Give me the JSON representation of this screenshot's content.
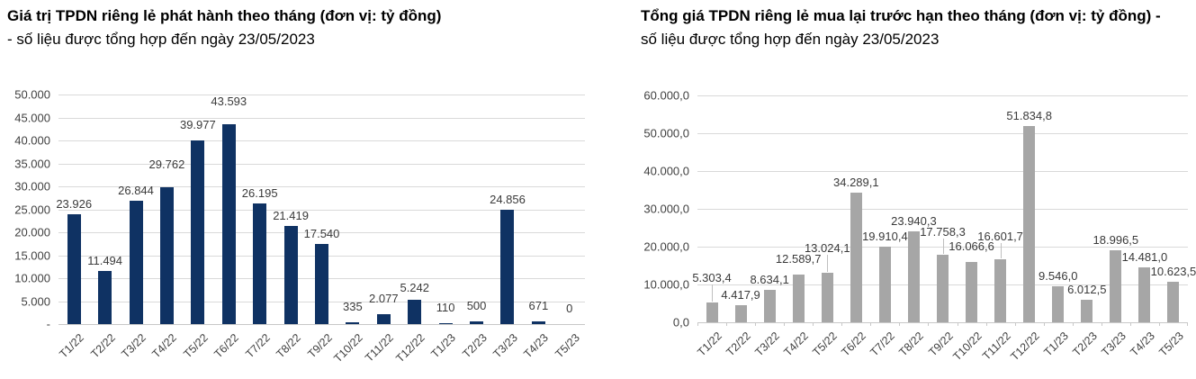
{
  "page": {
    "background": "#ffffff"
  },
  "colors": {
    "grid": "#d9d9d9",
    "axis": "#c8c8c8",
    "tick_label": "#404040",
    "data_label": "#3a3a3a",
    "leader": "#bfbfbf",
    "title": "#000000"
  },
  "chart_data": [
    {
      "type": "bar",
      "title_bold": "Giá trị TPDN riêng lẻ phát hành theo tháng (đơn vị: tỷ đồng)",
      "title_rest": "- số liệu được tổng hợp đến ngày 23/05/2023",
      "bar_color": "#0f3263",
      "grid": true,
      "legend": "none",
      "xlabel": "",
      "ylabel": "",
      "ylim": [
        0,
        50000
      ],
      "ytick_step": 5000,
      "yticks": [
        {
          "value": 50000,
          "label": "50.000"
        },
        {
          "value": 45000,
          "label": "45.000"
        },
        {
          "value": 40000,
          "label": "40.000"
        },
        {
          "value": 35000,
          "label": "35.000"
        },
        {
          "value": 30000,
          "label": "30.000"
        },
        {
          "value": 25000,
          "label": "25.000"
        },
        {
          "value": 20000,
          "label": "20.000"
        },
        {
          "value": 15000,
          "label": "15.000"
        },
        {
          "value": 10000,
          "label": "10.000"
        },
        {
          "value": 5000,
          "label": "5.000"
        },
        {
          "value": 0,
          "label": "-"
        }
      ],
      "categories": [
        "T1/22",
        "T2/22",
        "T3/22",
        "T4/22",
        "T5/22",
        "T6/22",
        "T7/22",
        "T8/22",
        "T9/22",
        "T10/22",
        "T11/22",
        "T12/22",
        "T1/23",
        "T2/23",
        "T3/23",
        "T4/23",
        "T5/23"
      ],
      "values": [
        23926,
        11494,
        26844,
        29762,
        39977,
        43593,
        26195,
        21419,
        17540,
        335,
        2077,
        5242,
        110,
        500,
        24856,
        671,
        0
      ],
      "labels": [
        "23.926",
        "11.494",
        "26.844",
        "29.762",
        "39.977",
        "43.593",
        "26.195",
        "21.419",
        "17.540",
        "335",
        "2.077",
        "5.242",
        "110",
        "500",
        "24.856",
        "671",
        "0"
      ],
      "label_raise": [
        0,
        0,
        0,
        14,
        6,
        14,
        0,
        0,
        0,
        6,
        6,
        2,
        6,
        6,
        0,
        6,
        6
      ],
      "leader_indices": [],
      "x_tick_marks": false
    },
    {
      "type": "bar",
      "title_bold": "Tổng giá TPDN riêng lẻ mua lại trước hạn theo tháng (đơn vị: tỷ đồng) -",
      "title_rest": " số liệu được tổng hợp đến ngày 23/05/2023",
      "bar_color": "#a6a6a6",
      "grid": true,
      "legend": "none",
      "xlabel": "",
      "ylabel": "",
      "ylim": [
        0,
        60000
      ],
      "ytick_step": 10000,
      "yticks": [
        {
          "value": 60000,
          "label": "60.000,0"
        },
        {
          "value": 50000,
          "label": "50.000,0"
        },
        {
          "value": 40000,
          "label": "40.000,0"
        },
        {
          "value": 30000,
          "label": "30.000,0"
        },
        {
          "value": 20000,
          "label": "20.000,0"
        },
        {
          "value": 10000,
          "label": "10.000,0"
        },
        {
          "value": 0,
          "label": "0,0"
        }
      ],
      "categories": [
        "T1/22",
        "T2/22",
        "T3/22",
        "T4/22",
        "T5/22",
        "T6/22",
        "T7/22",
        "T8/22",
        "T9/22",
        "T10/22",
        "T11/22",
        "T12/22",
        "T1/23",
        "T2/23",
        "T3/23",
        "T4/23",
        "T5/23"
      ],
      "values": [
        5303.4,
        4417.9,
        8634.1,
        12589.7,
        13024.1,
        34289.1,
        19910.4,
        23940.3,
        17758.3,
        16066.6,
        16601.7,
        51834.8,
        9546.0,
        6012.5,
        18996.5,
        14481.0,
        10623.5
      ],
      "labels": [
        "5.303,4",
        "4.417,9",
        "8.634,1",
        "12.589,7",
        "13.024,1",
        "34.289,1",
        "19.910,4",
        "23.940,3",
        "17.758,3",
        "16.066,6",
        "16.601,7",
        "51.834,8",
        "9.546,0",
        "6.012,5",
        "18.996,5",
        "14.481,0",
        "10.623,5"
      ],
      "label_raise": [
        16,
        0,
        0,
        6,
        16,
        0,
        0,
        0,
        14,
        6,
        14,
        0,
        0,
        0,
        0,
        0,
        0
      ],
      "leader_indices": [
        0,
        4,
        8,
        10
      ],
      "x_tick_marks": true
    }
  ]
}
